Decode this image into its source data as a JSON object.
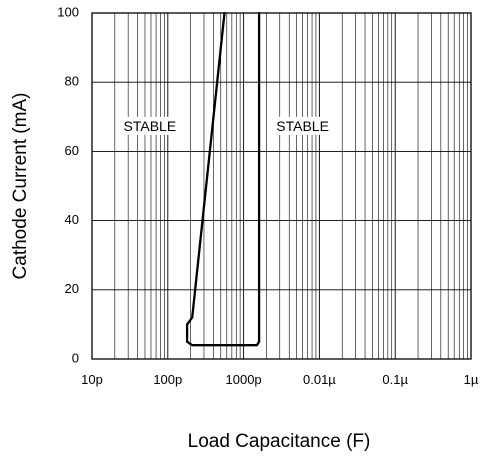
{
  "chart_data": {
    "type": "line",
    "xscale": "log",
    "x_unit": "F",
    "xlim": [
      1e-11,
      1e-06
    ],
    "ylim": [
      0,
      100
    ],
    "xlabel": "Load Capacitance (F)",
    "ylabel": "Cathode Current (mA)",
    "x_ticks": [
      {
        "value": 1e-11,
        "label": "10p"
      },
      {
        "value": 1e-10,
        "label": "100p"
      },
      {
        "value": 1e-09,
        "label": "1000p"
      },
      {
        "value": 1e-08,
        "label": "0.01µ"
      },
      {
        "value": 1e-07,
        "label": "0.1µ"
      },
      {
        "value": 1e-06,
        "label": "1µ"
      }
    ],
    "y_ticks": [
      {
        "value": 0,
        "label": "0"
      },
      {
        "value": 20,
        "label": "20"
      },
      {
        "value": 40,
        "label": "40"
      },
      {
        "value": 60,
        "label": "60"
      },
      {
        "value": 80,
        "label": "80"
      },
      {
        "value": 100,
        "label": "100"
      }
    ],
    "grid": true,
    "series": [
      {
        "x": [
          5.6e-10,
          2.1e-10,
          1.8e-10,
          1.8e-10,
          2.1e-10,
          1.5e-09,
          1.6e-09,
          1.6e-09
        ],
        "y": [
          100,
          12,
          10,
          5,
          4,
          4,
          5,
          100
        ]
      }
    ],
    "annotations": [
      {
        "text": "STABLE",
        "x": 5.8e-11,
        "y": 67
      },
      {
        "text": "STABLE",
        "x": 6e-09,
        "y": 67
      }
    ]
  }
}
